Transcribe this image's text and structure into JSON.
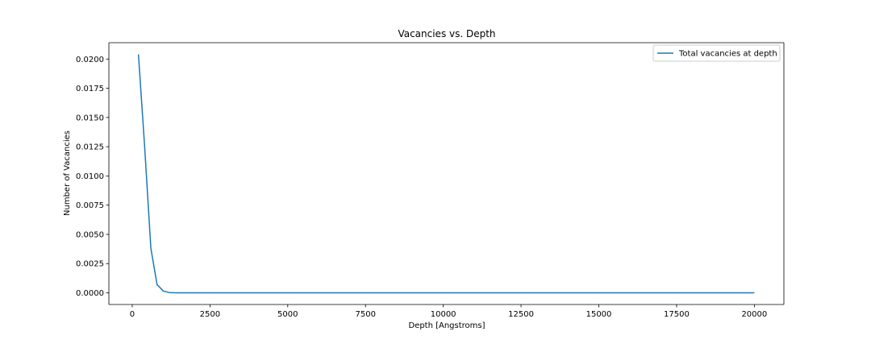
{
  "chart_data": {
    "type": "line",
    "title": "Vacancies vs. Depth",
    "xlabel": "Depth [Angstroms]",
    "ylabel": "Number of Vacancies",
    "xlim": [
      -750,
      20950
    ],
    "ylim": [
      -0.001,
      0.0214
    ],
    "x_ticks": [
      0,
      2500,
      5000,
      7500,
      10000,
      12500,
      15000,
      17500,
      20000
    ],
    "x_tick_labels": [
      "0",
      "2500",
      "5000",
      "7500",
      "10000",
      "12500",
      "15000",
      "17500",
      "20000"
    ],
    "y_ticks": [
      0.0,
      0.0025,
      0.005,
      0.0075,
      0.01,
      0.0125,
      0.015,
      0.0175,
      0.02
    ],
    "y_tick_labels": [
      "0.0000",
      "0.0025",
      "0.0050",
      "0.0075",
      "0.0100",
      "0.0125",
      "0.0150",
      "0.0175",
      "0.0200"
    ],
    "grid": false,
    "legend_position": "top-right",
    "series": [
      {
        "name": "Total vacancies at depth",
        "color": "#1f77b4",
        "x": [
          200,
          400,
          600,
          800,
          1000,
          1200,
          1400,
          1600,
          2000,
          3000,
          4000,
          5000,
          6000,
          7000,
          8000,
          9000,
          10000,
          11000,
          12000,
          13000,
          14000,
          15000,
          16000,
          17000,
          18000,
          19000,
          20000
        ],
        "y": [
          0.0204,
          0.0125,
          0.0038,
          0.0007,
          0.00015,
          2e-05,
          0.0,
          0.0,
          0.0,
          0.0,
          0.0,
          0.0,
          0.0,
          0.0,
          0.0,
          0.0,
          0.0,
          0.0,
          0.0,
          0.0,
          0.0,
          0.0,
          0.0,
          0.0,
          0.0,
          0.0,
          0.0
        ]
      }
    ]
  }
}
